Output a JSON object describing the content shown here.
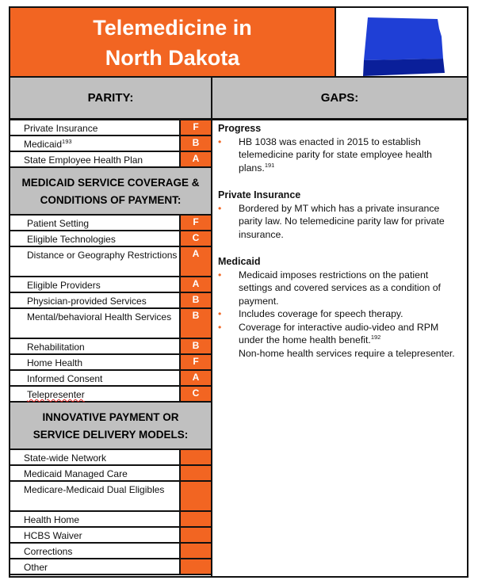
{
  "title": {
    "line1": "Telemedicine in",
    "line2": "North Dakota"
  },
  "colors": {
    "accent": "#f26522",
    "header_gray": "#c0c0c0",
    "map_blue": "#1f3fd6"
  },
  "map_icon": "north-dakota-state-map",
  "headers": {
    "parity": "PARITY:",
    "gaps": "GAPS:"
  },
  "parity": [
    {
      "label": "Private Insurance",
      "grade": "F"
    },
    {
      "label": "Medicaid",
      "sup": "193",
      "grade": "B"
    },
    {
      "label": "State Employee Health Plan",
      "grade": "A"
    }
  ],
  "medicaid_section": {
    "line1": "MEDICAID SERVICE COVERAGE &",
    "line2": "CONDITIONS OF PAYMENT:"
  },
  "medicaid": [
    {
      "label": "Patient Setting",
      "grade": "F"
    },
    {
      "label": "Eligible Technologies",
      "grade": "C"
    },
    {
      "label": "Distance or Geography Restrictions",
      "grade": "A"
    },
    {
      "label": "Eligible Providers",
      "grade": "A"
    },
    {
      "label": "Physician-provided Services",
      "grade": "B"
    },
    {
      "label": "Mental/behavioral Health Services",
      "grade": "B"
    },
    {
      "label": "Rehabilitation",
      "grade": "B"
    },
    {
      "label": "Home Health",
      "grade": "F"
    },
    {
      "label": "Informed Consent",
      "grade": "A"
    },
    {
      "label": "Telepresenter",
      "grade": "C"
    }
  ],
  "innovative_section": {
    "line1": "INNOVATIVE PAYMENT OR",
    "line2": "SERVICE DELIVERY MODELS:"
  },
  "innovative": [
    {
      "label": "State-wide Network",
      "grade": ""
    },
    {
      "label": "Medicaid Managed Care",
      "grade": ""
    },
    {
      "label": "Medicare-Medicaid Dual Eligibles",
      "grade": ""
    },
    {
      "label": "Health Home",
      "grade": ""
    },
    {
      "label": "HCBS Waiver",
      "grade": ""
    },
    {
      "label": "Corrections",
      "grade": ""
    },
    {
      "label": "Other",
      "grade": ""
    }
  ],
  "gaps": [
    {
      "heading": "Progress",
      "bullets": [
        {
          "text": "HB 1038 was enacted in 2015 to establish telemedicine parity for state employee health plans.",
          "sup": "191"
        }
      ]
    },
    {
      "heading": "Private Insurance",
      "bullets": [
        {
          "text": "Bordered by MT which has a private insurance parity law. No telemedicine parity law for private insurance."
        }
      ]
    },
    {
      "heading": "Medicaid",
      "bullets": [
        {
          "text": "Medicaid imposes restrictions on the patient settings and covered services as a condition of payment."
        },
        {
          "text": "Includes coverage for speech therapy."
        },
        {
          "text": "Coverage for interactive audio-video and RPM under the home health benefit.",
          "sup": "192",
          "extra": "Non-home health services require a telepresenter."
        }
      ]
    }
  ]
}
